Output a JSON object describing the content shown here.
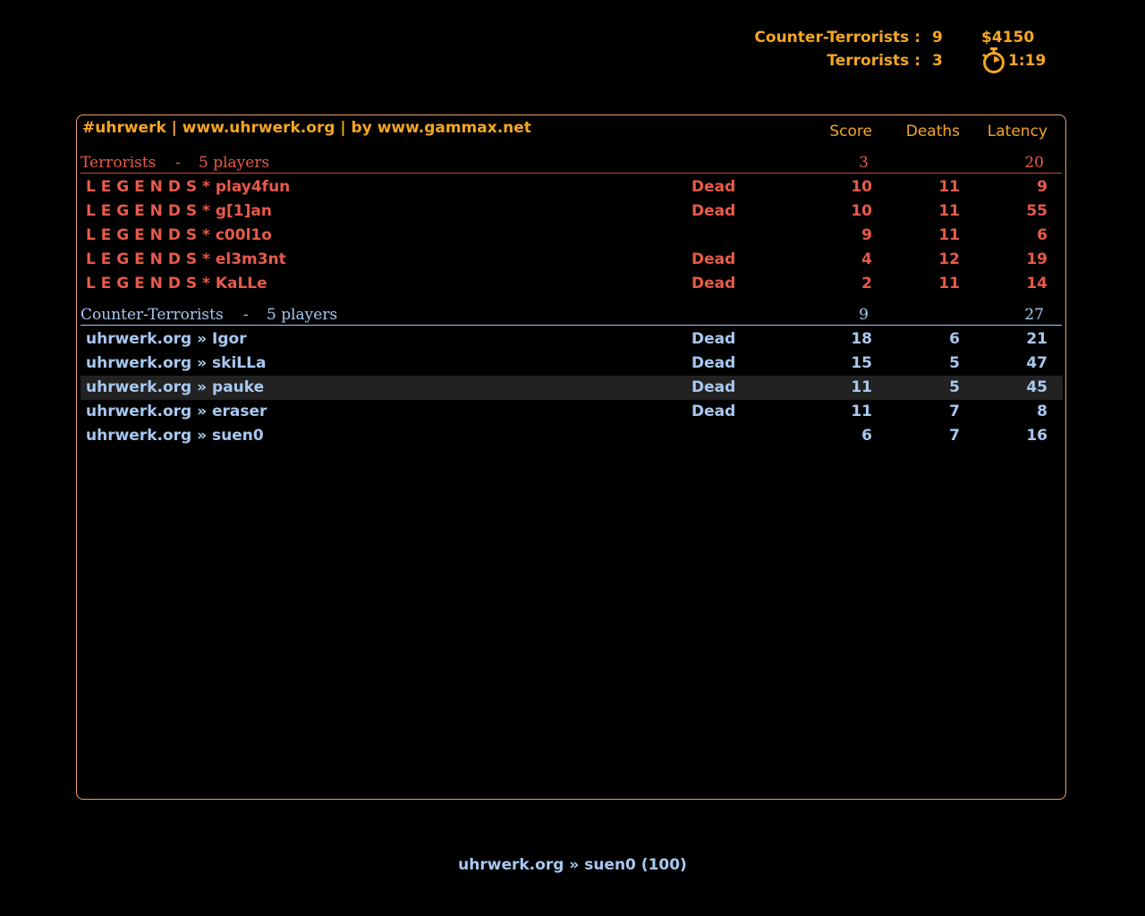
{
  "hud": {
    "ct_label": "Counter-Terrorists :",
    "ct_score": "9",
    "t_label": "Terrorists :",
    "t_score": "3",
    "money": "$4150",
    "timer": "1:19",
    "timer_icon": "stopwatch-icon",
    "color": "#f5a623"
  },
  "scoreboard": {
    "server_title": "#uhrwerk | www.uhrwerk.org | by www.gammax.net",
    "columns": {
      "score": "Score",
      "deaths": "Deaths",
      "latency": "Latency"
    },
    "terrorists": {
      "name": "Terrorists",
      "dash": "-",
      "players_label": "5 players",
      "score": "3",
      "latency": "20",
      "color": "#e85a4a",
      "players": [
        {
          "name": "L E G E N D S * play4fun",
          "status": "Dead",
          "score": "10",
          "deaths": "11",
          "latency": "9"
        },
        {
          "name": "L E G E N D S * g[1]an",
          "status": "Dead",
          "score": "10",
          "deaths": "11",
          "latency": "55"
        },
        {
          "name": "L E G E N D S * c00l1o",
          "status": "",
          "score": "9",
          "deaths": "11",
          "latency": "6"
        },
        {
          "name": "L E G E N D S * el3m3nt",
          "status": "Dead",
          "score": "4",
          "deaths": "12",
          "latency": "19"
        },
        {
          "name": "L E G E N D S * KaLLe",
          "status": "Dead",
          "score": "2",
          "deaths": "11",
          "latency": "14"
        }
      ]
    },
    "counter_terrorists": {
      "name": "Counter-Terrorists",
      "dash": "-",
      "players_label": "5 players",
      "score": "9",
      "latency": "27",
      "color": "#a8c8f0",
      "players": [
        {
          "name": "uhrwerk.org » Igor",
          "status": "Dead",
          "score": "18",
          "deaths": "6",
          "latency": "21"
        },
        {
          "name": "uhrwerk.org » skiLLa",
          "status": "Dead",
          "score": "15",
          "deaths": "5",
          "latency": "47"
        },
        {
          "name": "uhrwerk.org » pauke",
          "status": "Dead",
          "score": "11",
          "deaths": "5",
          "latency": "45",
          "selected": true
        },
        {
          "name": "uhrwerk.org » eraser",
          "status": "Dead",
          "score": "11",
          "deaths": "7",
          "latency": "8"
        },
        {
          "name": "uhrwerk.org » suen0",
          "status": "",
          "score": "6",
          "deaths": "7",
          "latency": "16"
        }
      ]
    }
  },
  "spectator_target": "uhrwerk.org » suen0 (100)"
}
